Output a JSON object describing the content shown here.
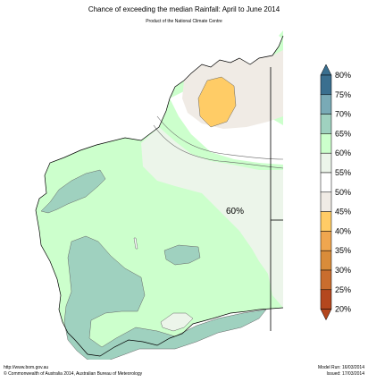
{
  "header": {
    "title": "Chance of exceeding the median Rainfall: April to June 2014",
    "subtitle": "Product of the National Climate Centre"
  },
  "map": {
    "annotation": "60%",
    "colors": {
      "c_75_80": "#3a6f8f",
      "c_70_75": "#79aab6",
      "c_65_70": "#9fd1bf",
      "c_60_65": "#ccffcc",
      "c_55_60": "#ecf5ea",
      "c_50_55": "#ffffff",
      "c_45_50": "#f0ebe5",
      "c_40_45": "#ffcc66",
      "c_35_40": "#f0a64f",
      "c_30_35": "#d98c3a",
      "c_25_30": "#c96d2e",
      "c_20_25": "#b4471e"
    }
  },
  "legend": {
    "labels": [
      "80%",
      "75%",
      "70%",
      "65%",
      "60%",
      "55%",
      "50%",
      "45%",
      "40%",
      "35%",
      "30%",
      "25%",
      "20%"
    ]
  },
  "footer": {
    "url": "http://www.bom.gov.au",
    "copyright": "©  Commonwealth of Australia 2014, Australian Bureau of Meteorology",
    "model_run": "Model Run: 16/03/2014",
    "issued": "Issued: 17/03/2014"
  }
}
